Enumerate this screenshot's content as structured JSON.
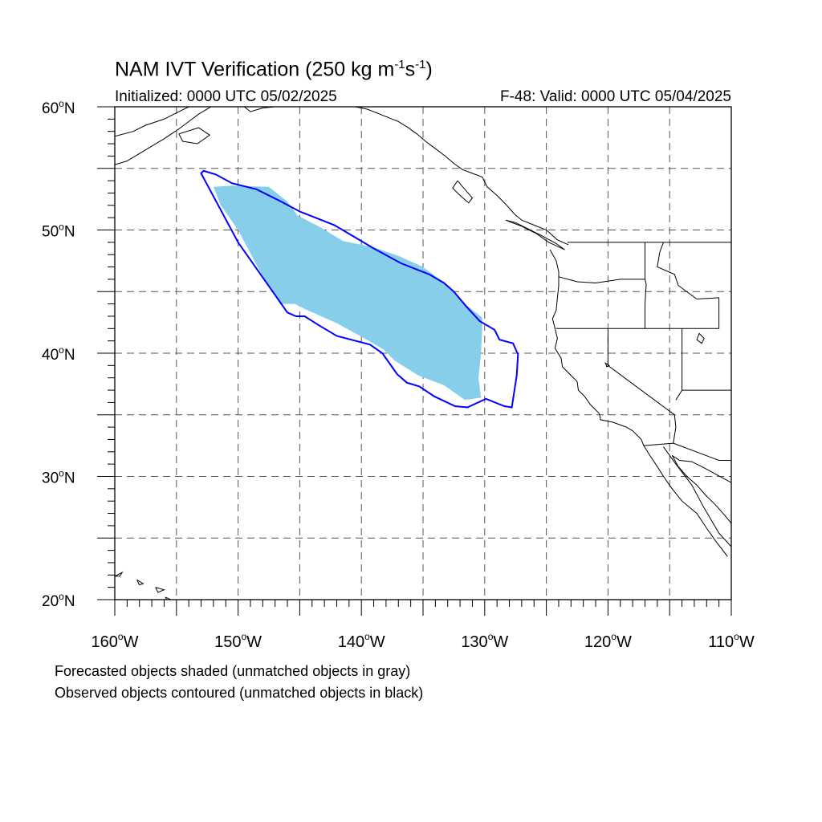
{
  "title": {
    "main": "NAM IVT Verification (250 kg m",
    "exp1": "-1",
    "mid": "s",
    "exp2": "-1",
    "end": ")"
  },
  "subtitle_left": "Initialized: 0000 UTC 05/02/2025",
  "subtitle_right": "F-48: Valid: 0000 UTC 05/04/2025",
  "map": {
    "lon_range": [
      -160,
      -110
    ],
    "lat_range": [
      20,
      60
    ],
    "grid": "dashed every 5 degrees",
    "lat_labels": [
      {
        "lat": 60,
        "num": "60",
        "hemi": "N"
      },
      {
        "lat": 50,
        "num": "50",
        "hemi": "N"
      },
      {
        "lat": 40,
        "num": "40",
        "hemi": "N"
      },
      {
        "lat": 30,
        "num": "30",
        "hemi": "N"
      },
      {
        "lat": 20,
        "num": "20",
        "hemi": "N"
      }
    ],
    "lon_labels": [
      {
        "lon": -160,
        "num": "160",
        "hemi": "W"
      },
      {
        "lon": -150,
        "num": "150",
        "hemi": "W"
      },
      {
        "lon": -140,
        "num": "140",
        "hemi": "W"
      },
      {
        "lon": -130,
        "num": "130",
        "hemi": "W"
      },
      {
        "lon": -120,
        "num": "120",
        "hemi": "W"
      },
      {
        "lon": -110,
        "num": "110",
        "hemi": "W"
      }
    ],
    "forecast_object": {
      "color": "#87ceeb",
      "points": [
        [
          -152,
          53.5
        ],
        [
          -150.5,
          53.6
        ],
        [
          -147.5,
          53.5
        ],
        [
          -146,
          52.3
        ],
        [
          -145.2,
          51.2
        ],
        [
          -143.3,
          50.2
        ],
        [
          -141.5,
          49.1
        ],
        [
          -139,
          48.6
        ],
        [
          -137,
          47.9
        ],
        [
          -135,
          47.0
        ],
        [
          -133,
          45.5
        ],
        [
          -131.5,
          43.9
        ],
        [
          -130.2,
          42.9
        ],
        [
          -130.2,
          42.0
        ],
        [
          -130.3,
          40.0
        ],
        [
          -130.5,
          38.0
        ],
        [
          -130.3,
          36.4
        ],
        [
          -131.6,
          36.2
        ],
        [
          -133.3,
          37.4
        ],
        [
          -135.4,
          38.2
        ],
        [
          -137.3,
          39.4
        ],
        [
          -138.2,
          40.3
        ],
        [
          -139.4,
          41.0
        ],
        [
          -141.9,
          42.4
        ],
        [
          -144.4,
          43.5
        ],
        [
          -145.4,
          44.0
        ],
        [
          -146.6,
          44.0
        ],
        [
          -148.2,
          46.6
        ],
        [
          -150.0,
          50.0
        ],
        [
          -151.4,
          52.0
        ]
      ]
    },
    "observed_object": {
      "color": "#0000ff",
      "points": [
        [
          -152.8,
          54.8
        ],
        [
          -151.8,
          54.5
        ],
        [
          -150.5,
          53.8
        ],
        [
          -148.5,
          53.3
        ],
        [
          -146.5,
          52.3
        ],
        [
          -145,
          51.5
        ],
        [
          -142.2,
          50.4
        ],
        [
          -140.5,
          49.4
        ],
        [
          -139,
          48.5
        ],
        [
          -136.8,
          47.3
        ],
        [
          -134.5,
          46.4
        ],
        [
          -133.3,
          45.7
        ],
        [
          -132.5,
          45.0
        ],
        [
          -131.5,
          43.8
        ],
        [
          -130.4,
          42.6
        ],
        [
          -129.2,
          41.9
        ],
        [
          -128.8,
          41.1
        ],
        [
          -127.7,
          40.8
        ],
        [
          -127.3,
          39.9
        ],
        [
          -127.4,
          38.2
        ],
        [
          -127.8,
          35.6
        ],
        [
          -128.4,
          35.7
        ],
        [
          -129.9,
          36.3
        ],
        [
          -131.4,
          35.6
        ],
        [
          -132.4,
          35.7
        ],
        [
          -134.1,
          36.5
        ],
        [
          -135.3,
          37.3
        ],
        [
          -136.3,
          37.6
        ],
        [
          -137.1,
          38.3
        ],
        [
          -138.3,
          40.0
        ],
        [
          -139.3,
          40.7
        ],
        [
          -142.0,
          41.4
        ],
        [
          -143.5,
          42.3
        ],
        [
          -144.6,
          43.0
        ],
        [
          -145.3,
          43.0
        ],
        [
          -146.0,
          43.3
        ],
        [
          -150.0,
          49.0
        ],
        [
          -153.0,
          54.6
        ]
      ]
    },
    "coast_color": "#000000"
  },
  "captions": [
    "Forecasted objects shaded (unmatched objects in gray)",
    "Observed objects contoured (unmatched objects in black)"
  ]
}
